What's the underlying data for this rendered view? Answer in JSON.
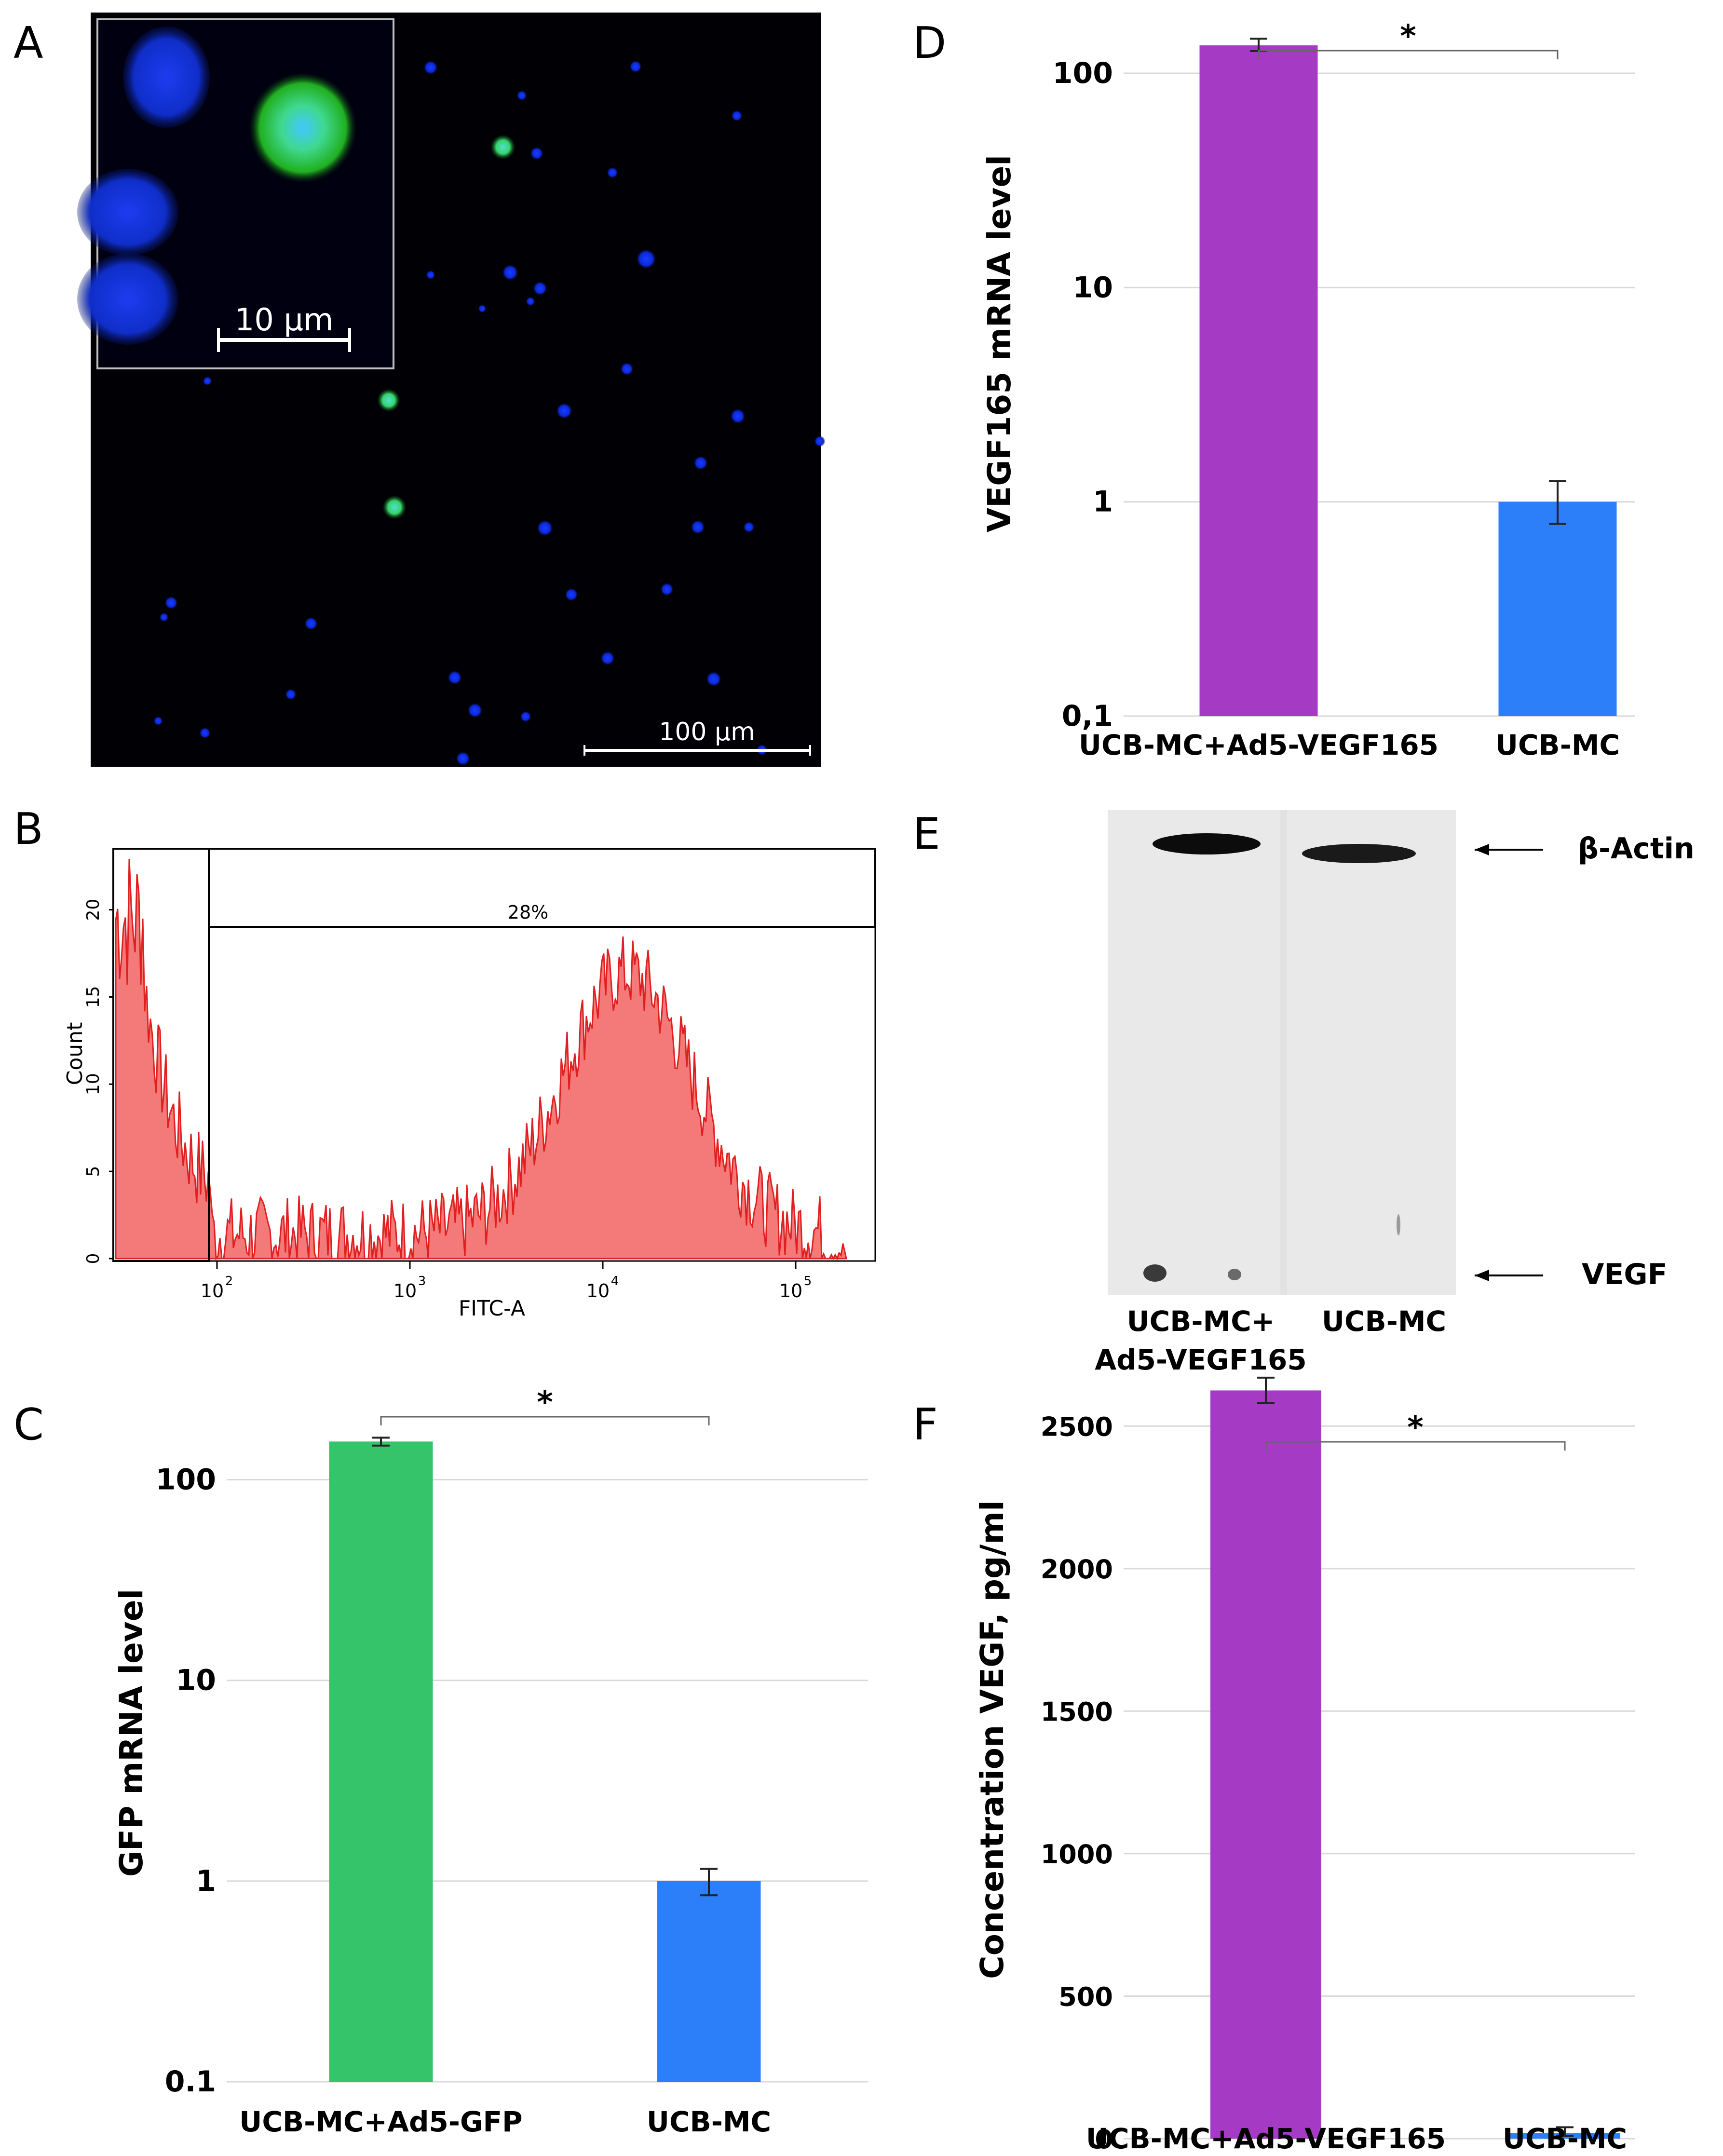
{
  "panels": {
    "A": {
      "letter": "A",
      "inset_scale_label": "10 µm",
      "main_scale_label": "100 µm"
    },
    "B": {
      "letter": "B",
      "gate_label": "28%",
      "xlabel": "FITC-A",
      "ylabel": "Count",
      "y_ticks": [
        "0",
        "5",
        "10",
        "15",
        "20"
      ],
      "x_ticks": [
        {
          "base": "10",
          "exp": "2"
        },
        {
          "base": "10",
          "exp": "3"
        },
        {
          "base": "10",
          "exp": "4"
        },
        {
          "base": "10",
          "exp": "5"
        }
      ]
    },
    "C": {
      "letter": "C"
    },
    "D": {
      "letter": "D"
    },
    "E": {
      "letter": "E",
      "band_top_label": "β-Actin",
      "band_bottom_label": "VEGF",
      "lane1_label_line1": "UCB-MC+",
      "lane1_label_line2": "Ad5-VEGF165",
      "lane2_label": "UCB-MC"
    },
    "F": {
      "letter": "F"
    }
  },
  "chart_data": [
    {
      "panel": "C",
      "type": "bar",
      "scale": "log",
      "categories": [
        "UCB-MC+Ad5-GFP",
        "UCB-MC"
      ],
      "values": [
        155,
        1.0
      ],
      "errors": [
        [
          148,
          162
        ],
        [
          0.85,
          1.15
        ]
      ],
      "colors": [
        "#36c46b",
        "#2d7ff9"
      ],
      "ylabel": "GFP mRNA level",
      "yticks": [
        "0.1",
        "1",
        "10",
        "100"
      ],
      "ylim": [
        0.1,
        300
      ],
      "significance": "*"
    },
    {
      "panel": "D",
      "type": "bar",
      "scale": "log",
      "categories": [
        "UCB-MC+Ad5-VEGF165",
        "UCB-MC"
      ],
      "values": [
        135,
        1.0
      ],
      "errors": [
        [
          127,
          145
        ],
        [
          0.79,
          1.25
        ]
      ],
      "colors": [
        "#a53ac5",
        "#2d7ff9"
      ],
      "ylabel": "VEGF165 mRNA level",
      "yticks": [
        "0,1",
        "1",
        "10",
        "100"
      ],
      "ylim": [
        0.1,
        300
      ],
      "significance": "*"
    },
    {
      "panel": "F",
      "type": "bar",
      "scale": "linear",
      "categories": [
        "UCB-MC+Ad5-VEGF165",
        "UCB-MC"
      ],
      "values": [
        2625,
        20
      ],
      "errors": [
        [
          2580,
          2670
        ],
        [
          10,
          40
        ]
      ],
      "colors": [
        "#a53ac5",
        "#2d7ff9"
      ],
      "ylabel": "Concentration VEGF, pg/ml",
      "yticks": [
        "0",
        "500",
        "1000",
        "1500",
        "2000",
        "2500"
      ],
      "ylim": [
        0,
        2800
      ],
      "significance": "*"
    }
  ]
}
